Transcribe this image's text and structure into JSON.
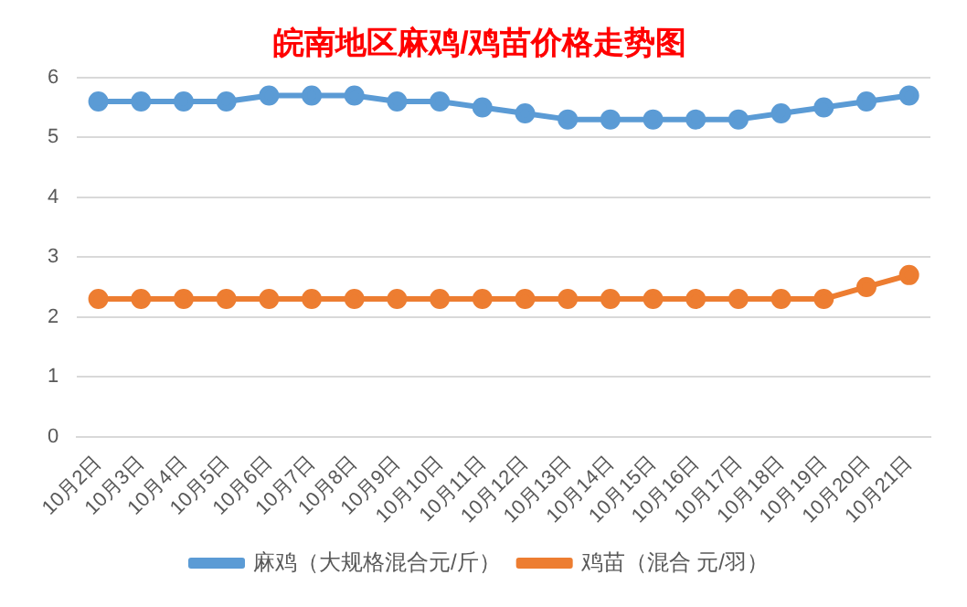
{
  "chart_data": {
    "type": "line",
    "title": "皖南地区麻鸡/鸡苗价格走势图",
    "categories": [
      "10月2日",
      "10月3日",
      "10月4日",
      "10月5日",
      "10月6日",
      "10月7日",
      "10月8日",
      "10月9日",
      "10月10日",
      "10月11日",
      "10月12日",
      "10月13日",
      "10月14日",
      "10月15日",
      "10月16日",
      "10月17日",
      "10月18日",
      "10月19日",
      "10月20日",
      "10月21日"
    ],
    "series": [
      {
        "name": "麻鸡（大规格混合元/斤）",
        "color": "#5b9bd5",
        "values": [
          5.6,
          5.6,
          5.6,
          5.6,
          5.7,
          5.7,
          5.7,
          5.6,
          5.6,
          5.5,
          5.4,
          5.3,
          5.3,
          5.3,
          5.3,
          5.3,
          5.4,
          5.5,
          5.6,
          5.7
        ]
      },
      {
        "name": "鸡苗（混合 元/羽）",
        "color": "#ed7d31",
        "values": [
          2.3,
          2.3,
          2.3,
          2.3,
          2.3,
          2.3,
          2.3,
          2.3,
          2.3,
          2.3,
          2.3,
          2.3,
          2.3,
          2.3,
          2.3,
          2.3,
          2.3,
          2.3,
          2.5,
          2.7
        ]
      }
    ],
    "ylim": [
      0,
      6
    ],
    "yticks": [
      0,
      1,
      2,
      3,
      4,
      5,
      6
    ],
    "grid": "y",
    "legend": "bottom",
    "marker": "circle",
    "line_style": "solid"
  }
}
